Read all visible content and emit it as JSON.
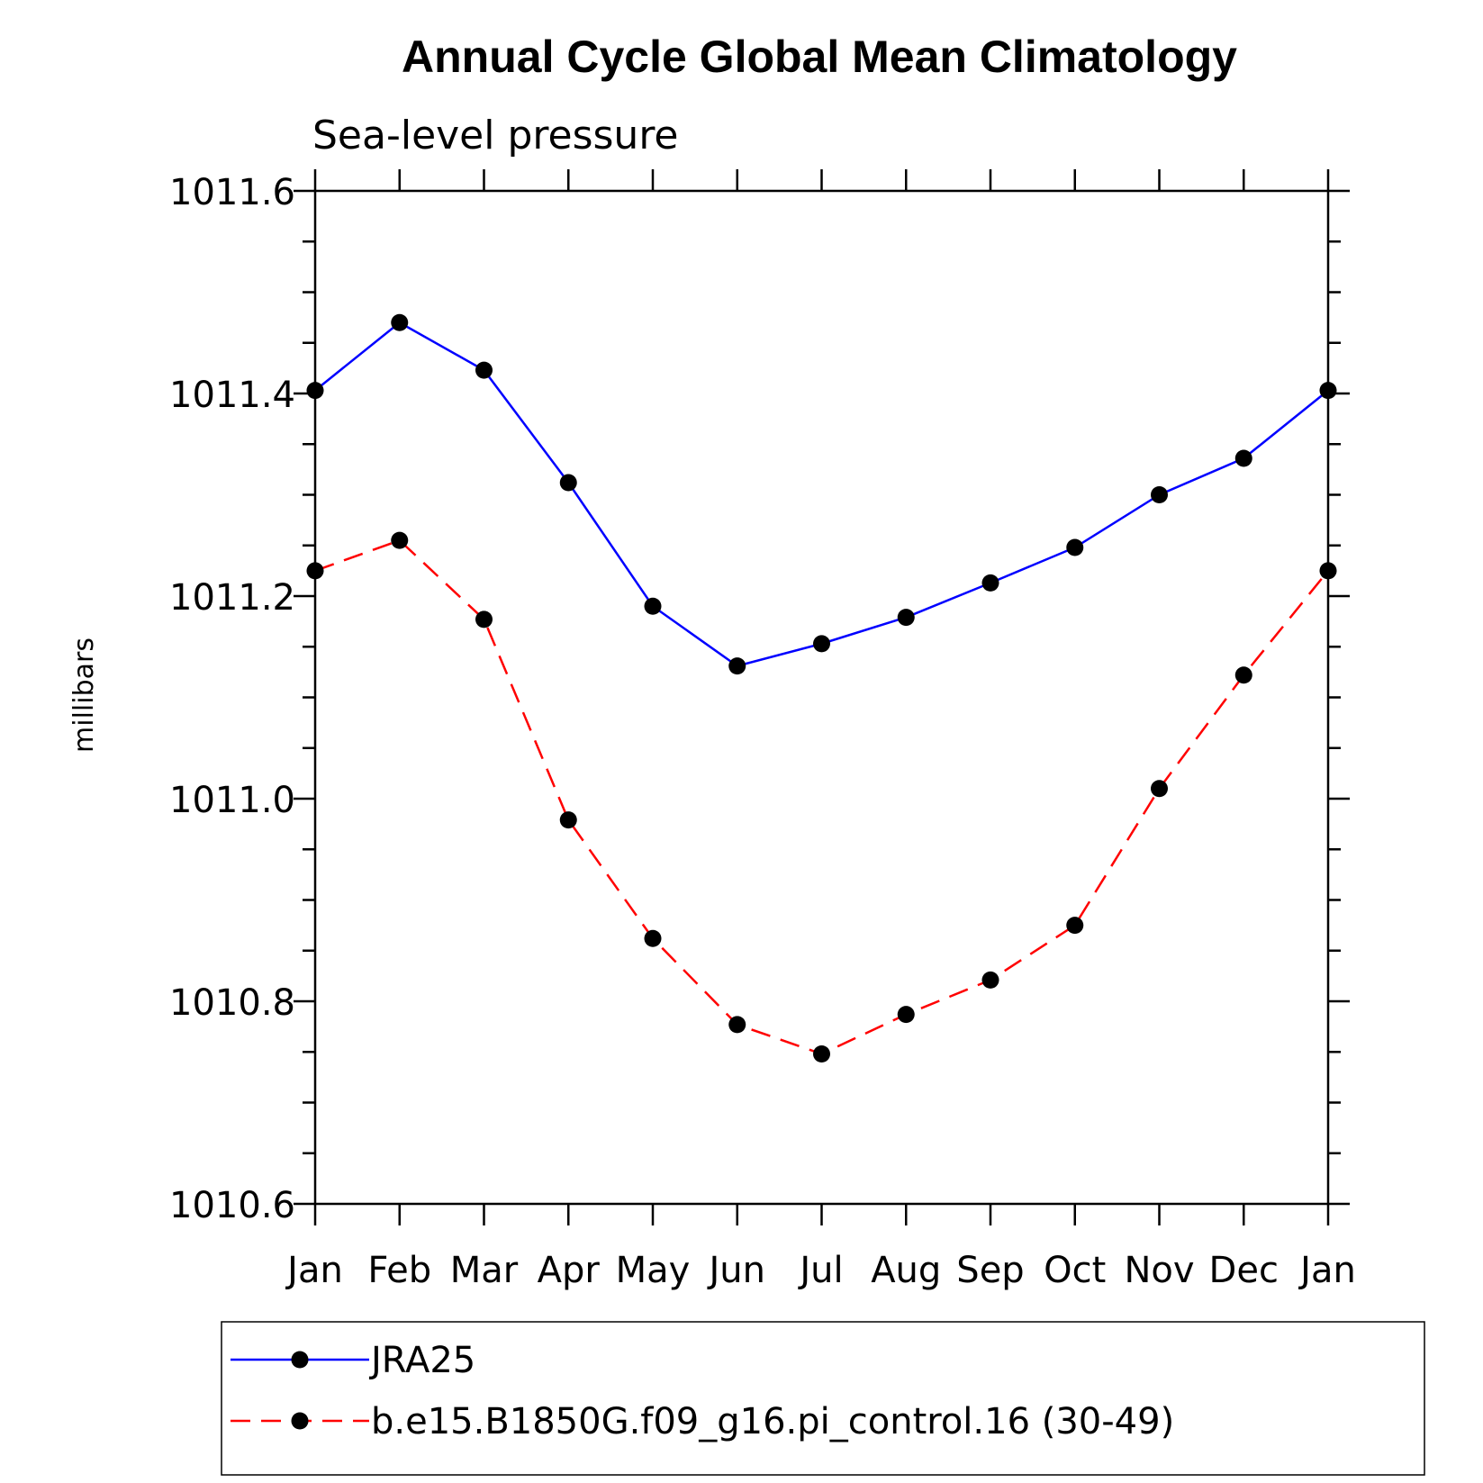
{
  "chart_data": {
    "type": "line",
    "title": "Annual Cycle Global Mean Climatology",
    "subtitle": "Sea-level pressure",
    "ylabel": "millibars",
    "xlabel": "",
    "categories": [
      "Jan",
      "Feb",
      "Mar",
      "Apr",
      "May",
      "Jun",
      "Jul",
      "Aug",
      "Sep",
      "Oct",
      "Nov",
      "Dec",
      "Jan"
    ],
    "ylim": [
      1010.6,
      1011.6
    ],
    "yticks": [
      1010.6,
      1010.8,
      1011.0,
      1011.2,
      1011.4,
      1011.6
    ],
    "ytick_labels": [
      "1010.6",
      "1010.8",
      "1011.0",
      "1011.2",
      "1011.4",
      "1011.6"
    ],
    "grid": false,
    "legend_position": "bottom",
    "series": [
      {
        "name": "JRA25",
        "color": "#0000ff",
        "dash": "solid",
        "values": [
          1011.403,
          1011.47,
          1011.423,
          1011.312,
          1011.19,
          1011.131,
          1011.153,
          1011.179,
          1011.213,
          1011.248,
          1011.3,
          1011.336,
          1011.403
        ]
      },
      {
        "name": "b.e15.B1850G.f09_g16.pi_control.16 (30-49)",
        "color": "#ff0000",
        "dash": "dashed",
        "values": [
          1011.225,
          1011.255,
          1011.177,
          1010.979,
          1010.862,
          1010.777,
          1010.748,
          1010.787,
          1010.821,
          1010.875,
          1011.01,
          1011.122,
          1011.225
        ]
      }
    ]
  }
}
